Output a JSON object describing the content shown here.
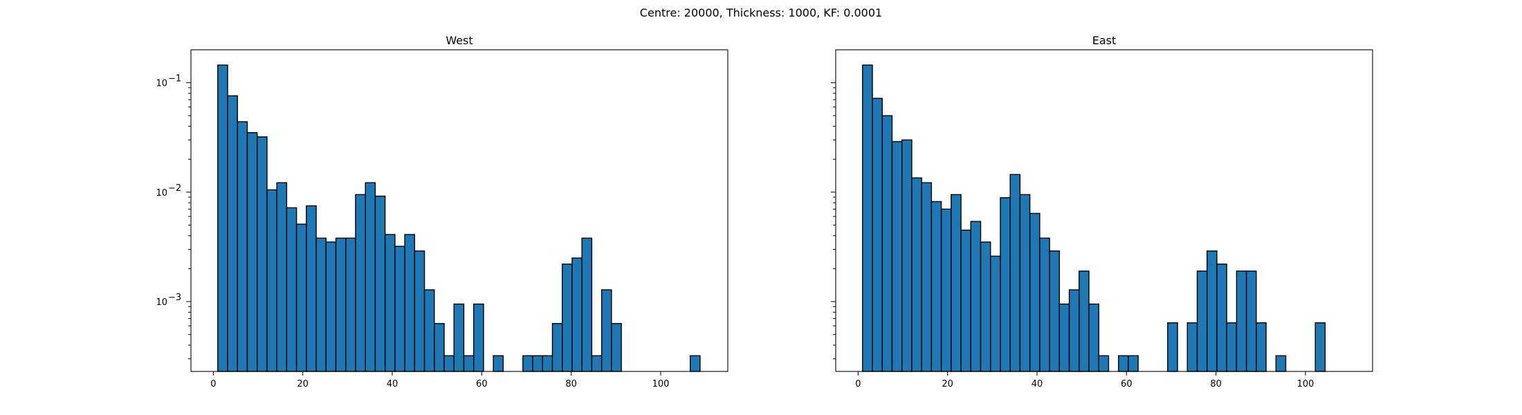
{
  "figure": {
    "suptitle": "Centre: 20000, Thickness: 1000, KF: 0.0001",
    "colors": {
      "bar_fill": "#1f77b4",
      "bar_edge": "#000000"
    }
  },
  "chart_data": [
    {
      "type": "bar",
      "title": "West",
      "xlabel": "",
      "ylabel": "",
      "xscale": "linear",
      "yscale": "log",
      "xlim": [
        -5,
        115
      ],
      "ylim": [
        0.00023,
        0.2
      ],
      "xticks": [
        0,
        20,
        40,
        60,
        80,
        100
      ],
      "yticks": [
        {
          "value": 0.1,
          "base": "10",
          "exp": "−1"
        },
        {
          "value": 0.01,
          "base": "10",
          "exp": "−2"
        },
        {
          "value": 0.001,
          "base": "10",
          "exp": "−3"
        }
      ],
      "bin_width": 2.2,
      "bins": [
        {
          "x0": 1.0,
          "value": 0.145
        },
        {
          "x0": 3.2,
          "value": 0.076
        },
        {
          "x0": 5.4,
          "value": 0.044
        },
        {
          "x0": 7.6,
          "value": 0.035
        },
        {
          "x0": 9.8,
          "value": 0.032
        },
        {
          "x0": 12.0,
          "value": 0.0105
        },
        {
          "x0": 14.2,
          "value": 0.0122
        },
        {
          "x0": 16.4,
          "value": 0.0072
        },
        {
          "x0": 18.6,
          "value": 0.0051
        },
        {
          "x0": 20.8,
          "value": 0.0075
        },
        {
          "x0": 23.0,
          "value": 0.0038
        },
        {
          "x0": 25.2,
          "value": 0.0035
        },
        {
          "x0": 27.4,
          "value": 0.0038
        },
        {
          "x0": 29.6,
          "value": 0.0038
        },
        {
          "x0": 31.8,
          "value": 0.0095
        },
        {
          "x0": 34.0,
          "value": 0.0122
        },
        {
          "x0": 36.2,
          "value": 0.0092
        },
        {
          "x0": 38.4,
          "value": 0.0041
        },
        {
          "x0": 40.6,
          "value": 0.0032
        },
        {
          "x0": 42.8,
          "value": 0.0041
        },
        {
          "x0": 45.0,
          "value": 0.0029
        },
        {
          "x0": 47.2,
          "value": 0.00128
        },
        {
          "x0": 49.4,
          "value": 0.00063
        },
        {
          "x0": 51.6,
          "value": 0.00032
        },
        {
          "x0": 53.8,
          "value": 0.00095
        },
        {
          "x0": 56.0,
          "value": 0.00032
        },
        {
          "x0": 58.2,
          "value": 0.00095
        },
        {
          "x0": 62.6,
          "value": 0.00032
        },
        {
          "x0": 69.2,
          "value": 0.00032
        },
        {
          "x0": 71.4,
          "value": 0.00032
        },
        {
          "x0": 73.6,
          "value": 0.00032
        },
        {
          "x0": 75.8,
          "value": 0.00063
        },
        {
          "x0": 78.0,
          "value": 0.0022
        },
        {
          "x0": 80.2,
          "value": 0.0025
        },
        {
          "x0": 82.4,
          "value": 0.0038
        },
        {
          "x0": 84.6,
          "value": 0.00032
        },
        {
          "x0": 86.8,
          "value": 0.00128
        },
        {
          "x0": 89.0,
          "value": 0.00063
        },
        {
          "x0": 106.6,
          "value": 0.00032
        }
      ]
    },
    {
      "type": "bar",
      "title": "East",
      "xlabel": "",
      "ylabel": "",
      "xscale": "linear",
      "yscale": "log",
      "xlim": [
        -5,
        115
      ],
      "ylim": [
        0.00023,
        0.2
      ],
      "xticks": [
        0,
        20,
        40,
        60,
        80,
        100
      ],
      "yticks": [],
      "bin_width": 2.2,
      "bins": [
        {
          "x0": 1.0,
          "value": 0.145
        },
        {
          "x0": 3.2,
          "value": 0.072
        },
        {
          "x0": 5.4,
          "value": 0.05
        },
        {
          "x0": 7.6,
          "value": 0.029
        },
        {
          "x0": 9.8,
          "value": 0.03
        },
        {
          "x0": 12.0,
          "value": 0.0135
        },
        {
          "x0": 14.2,
          "value": 0.0122
        },
        {
          "x0": 16.4,
          "value": 0.0082
        },
        {
          "x0": 18.6,
          "value": 0.007
        },
        {
          "x0": 20.8,
          "value": 0.0095
        },
        {
          "x0": 23.0,
          "value": 0.0045
        },
        {
          "x0": 25.2,
          "value": 0.0054
        },
        {
          "x0": 27.4,
          "value": 0.0035
        },
        {
          "x0": 29.6,
          "value": 0.0026
        },
        {
          "x0": 31.8,
          "value": 0.0089
        },
        {
          "x0": 34.0,
          "value": 0.0145
        },
        {
          "x0": 36.2,
          "value": 0.0095
        },
        {
          "x0": 38.4,
          "value": 0.0064
        },
        {
          "x0": 40.6,
          "value": 0.0038
        },
        {
          "x0": 42.8,
          "value": 0.0029
        },
        {
          "x0": 45.0,
          "value": 0.00095
        },
        {
          "x0": 47.2,
          "value": 0.00128
        },
        {
          "x0": 49.4,
          "value": 0.0019
        },
        {
          "x0": 51.6,
          "value": 0.00095
        },
        {
          "x0": 53.8,
          "value": 0.00032
        },
        {
          "x0": 58.2,
          "value": 0.00032
        },
        {
          "x0": 60.4,
          "value": 0.00032
        },
        {
          "x0": 69.2,
          "value": 0.00064
        },
        {
          "x0": 73.6,
          "value": 0.00064
        },
        {
          "x0": 75.8,
          "value": 0.0019
        },
        {
          "x0": 78.0,
          "value": 0.0029
        },
        {
          "x0": 80.2,
          "value": 0.0022
        },
        {
          "x0": 82.4,
          "value": 0.00064
        },
        {
          "x0": 84.6,
          "value": 0.0019
        },
        {
          "x0": 86.8,
          "value": 0.0019
        },
        {
          "x0": 89.0,
          "value": 0.00064
        },
        {
          "x0": 93.4,
          "value": 0.00032
        },
        {
          "x0": 102.2,
          "value": 0.00064
        }
      ]
    }
  ]
}
